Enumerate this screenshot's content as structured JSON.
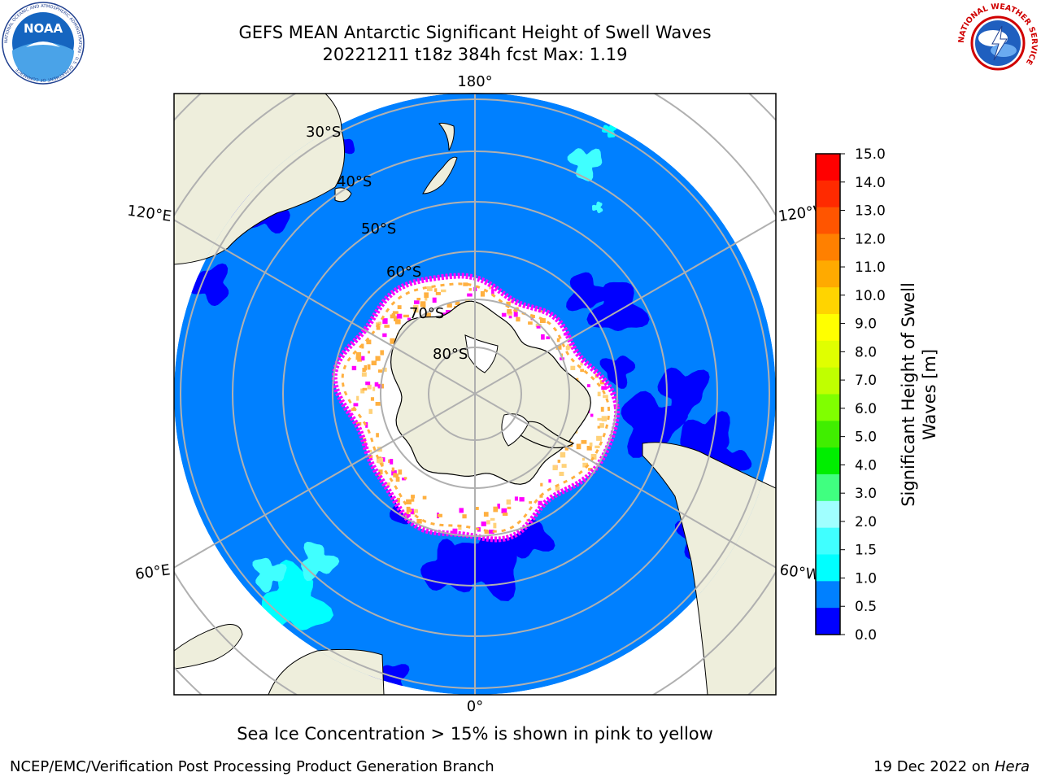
{
  "header": {
    "title_line1": "GEFS MEAN Antarctic Significant Height of Swell Waves",
    "title_line2": "20221211 t18z 384h fcst   Max: 1.19"
  },
  "logos": {
    "left": "noaa-logo",
    "left_text": "NOAA",
    "left_ring_text": "NATIONAL OCEANIC AND ATMOSPHERIC ADMINISTRATION · U.S. DEPARTMENT OF COMMERCE",
    "right": "nws-logo",
    "right_ring_text": "NATIONAL WEATHER SERVICE"
  },
  "map": {
    "projection": "south-polar-stereographic",
    "longitude_labels": {
      "top": "180°",
      "bottom": "0°",
      "upper_left": "120°E",
      "upper_right": "120°W",
      "lower_left": "60°E",
      "lower_right": "60°W"
    },
    "latitude_labels": [
      "30°S",
      "40°S",
      "50°S",
      "60°S",
      "70°S",
      "80°S"
    ],
    "colors": {
      "land": "#eeeedc",
      "ocean_0_5_1_0": "#0080ff",
      "ocean_0_0_0_5": "#0000ff",
      "swell_1_0_1_5": "#00ffff",
      "swell_1_5_2_0": "#40ffff",
      "sea_ice_low": "#ff00ff",
      "sea_ice_mid": "#ffb040",
      "sea_ice_high": "#ffffff",
      "graticule": "#b0b0b0"
    }
  },
  "colorbar": {
    "label_line1": "Significant Height of Swell",
    "label_line2": "Waves [m]",
    "ticks": [
      "15.0",
      "14.0",
      "13.0",
      "12.0",
      "11.0",
      "10.0",
      "9.0",
      "8.0",
      "7.0",
      "6.0",
      "5.0",
      "4.0",
      "3.0",
      "2.0",
      "1.5",
      "1.0",
      "0.5",
      "0.0"
    ],
    "colors_top_to_bottom": [
      "#ff0000",
      "#ff2a00",
      "#ff5500",
      "#ff8000",
      "#ffaa00",
      "#ffd400",
      "#ffff00",
      "#e0ff00",
      "#c0ff00",
      "#80ff00",
      "#40ee00",
      "#00ee00",
      "#40ff80",
      "#a0ffff",
      "#40ffff",
      "#00ffff",
      "#0080ff",
      "#0000ff"
    ]
  },
  "caption": "Sea Ice Concentration > 15% is shown in pink to yellow",
  "footer": {
    "left": "NCEP/EMC/Verification Post Processing Product Generation Branch",
    "right_prefix": "19 Dec 2022 on ",
    "right_machine": "Hera"
  }
}
